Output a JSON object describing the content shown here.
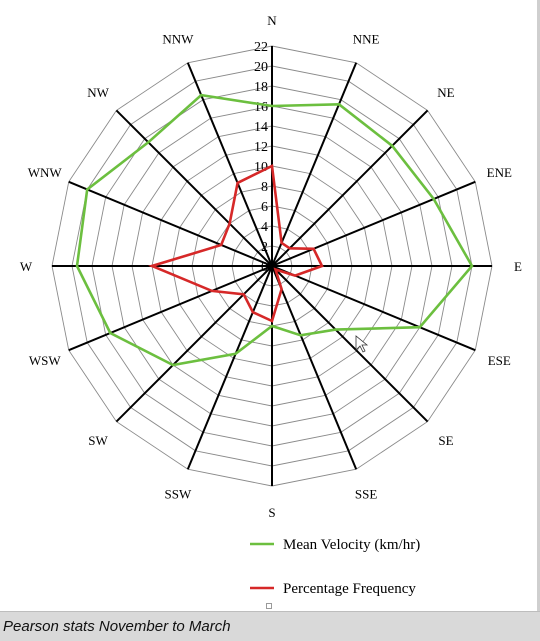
{
  "chart_data": {
    "type": "radar",
    "directions": [
      "N",
      "NNE",
      "NE",
      "ENE",
      "E",
      "ESE",
      "SE",
      "SSE",
      "S",
      "SSW",
      "SW",
      "WSW",
      "W",
      "WNW",
      "NW",
      "NNW"
    ],
    "radial_ticks": [
      0,
      2,
      4,
      6,
      8,
      10,
      12,
      14,
      16,
      18,
      20,
      22
    ],
    "rlim": [
      0,
      22
    ],
    "grid": true,
    "legend_position": "bottom-right",
    "series": [
      {
        "name": "Mean Velocity (km/hr)",
        "color": "#6cbf3f",
        "values": [
          16,
          17.5,
          17,
          17.5,
          20,
          16,
          9,
          7.5,
          6,
          9.5,
          14,
          17.5,
          19.5,
          20,
          17.5,
          18.5
        ]
      },
      {
        "name": "Percentage Frequency",
        "color": "#d62828",
        "values": [
          10,
          2.5,
          2.5,
          4.5,
          5,
          2.5,
          0.5,
          2.5,
          5.5,
          5,
          4,
          6.5,
          12,
          5.5,
          6,
          9
        ]
      }
    ]
  },
  "caption": "Pearson stats November to March"
}
